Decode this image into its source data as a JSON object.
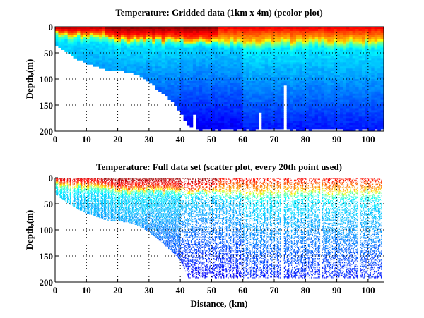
{
  "chart_data": [
    {
      "type": "heatmap",
      "title": "Temperature: Gridded data (1km x 4m) (pcolor plot)",
      "xlabel": "",
      "ylabel": "Depth,(m)",
      "xlim": [
        0,
        105
      ],
      "ylim": [
        0,
        200
      ],
      "y_reversed": true,
      "grid": "dotted",
      "xticks": [
        "0",
        "10",
        "20",
        "30",
        "40",
        "50",
        "60",
        "70",
        "80",
        "90",
        "100"
      ],
      "yticks": [
        "0",
        "50",
        "100",
        "150",
        "200"
      ],
      "cell_size": {
        "dx_km": 1,
        "dz_m": 4
      },
      "colormap": "jet",
      "gaps_km": [
        44,
        65,
        73
      ],
      "gap_top_depth_m": [
        170,
        166,
        115
      ]
    },
    {
      "type": "scatter",
      "title": "Temperature: Full data set (scatter plot, every 20th point used)",
      "xlabel": "Distance, (km)",
      "ylabel": "Depth,(m)",
      "xlim": [
        0,
        105
      ],
      "ylim": [
        0,
        200
      ],
      "y_reversed": true,
      "grid": "dotted",
      "xticks": [
        "0",
        "10",
        "20",
        "30",
        "40",
        "50",
        "60",
        "70",
        "80",
        "90",
        "100"
      ],
      "yticks": [
        "0",
        "50",
        "100",
        "150",
        "200"
      ],
      "colormap": "jet",
      "subsample": 20
    }
  ],
  "section_profile": {
    "distance_km": [
      0,
      2,
      4,
      6,
      8,
      10,
      12,
      14,
      16,
      18,
      20,
      22,
      24,
      26,
      28,
      30,
      32,
      34,
      36,
      38,
      40,
      42,
      44,
      105
    ],
    "bottom_depth_m": [
      30,
      40,
      48,
      55,
      62,
      68,
      72,
      76,
      80,
      82,
      83,
      84,
      86,
      90,
      96,
      104,
      114,
      124,
      134,
      146,
      160,
      185,
      194,
      194
    ],
    "thermocline_km": [
      0,
      10,
      20,
      30,
      40,
      50,
      60,
      70,
      80,
      90,
      100,
      105
    ],
    "thermocline_depth_m": [
      14,
      18,
      24,
      26,
      26,
      28,
      32,
      32,
      30,
      30,
      30,
      32
    ]
  }
}
